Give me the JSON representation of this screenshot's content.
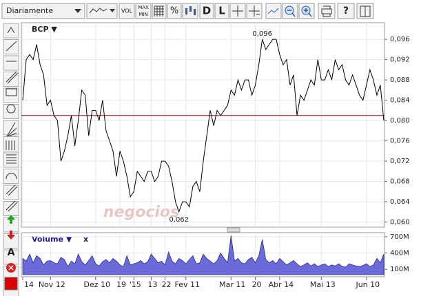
{
  "toolbar": {
    "period": "Diariamente",
    "vol": "VOL",
    "max": "MAX",
    "min": "MIN",
    "percent": "%",
    "d": "D",
    "l": "L",
    "help": "?"
  },
  "side_tool": "A",
  "watermark": "negocios",
  "chart_data": [
    {
      "type": "line",
      "title": "BCP ▼",
      "color": "#000000",
      "values": [
        0.084,
        0.092,
        0.093,
        0.092,
        0.095,
        0.091,
        0.089,
        0.083,
        0.084,
        0.081,
        0.08,
        0.072,
        0.074,
        0.077,
        0.081,
        0.075,
        0.08,
        0.086,
        0.085,
        0.077,
        0.082,
        0.082,
        0.08,
        0.084,
        0.078,
        0.076,
        0.074,
        0.069,
        0.074,
        0.072,
        0.069,
        0.065,
        0.066,
        0.07,
        0.069,
        0.068,
        0.07,
        0.07,
        0.068,
        0.069,
        0.072,
        0.072,
        0.071,
        0.068,
        0.064,
        0.062,
        0.064,
        0.064,
        0.063,
        0.067,
        0.068,
        0.066,
        0.072,
        0.077,
        0.082,
        0.079,
        0.082,
        0.081,
        0.082,
        0.083,
        0.086,
        0.085,
        0.088,
        0.086,
        0.088,
        0.088,
        0.085,
        0.087,
        0.091,
        0.096,
        0.094,
        0.095,
        0.096,
        0.096,
        0.093,
        0.091,
        0.092,
        0.087,
        0.089,
        0.081,
        0.085,
        0.084,
        0.086,
        0.088,
        0.087,
        0.092,
        0.088,
        0.088,
        0.09,
        0.088,
        0.092,
        0.09,
        0.091,
        0.088,
        0.087,
        0.089,
        0.087,
        0.085,
        0.084,
        0.087,
        0.09,
        0.088,
        0.085,
        0.087,
        0.08
      ],
      "annotations": [
        "0,096",
        "0,062"
      ],
      "reference_line": 0.081,
      "reference_color": "#b00000",
      "ylim": [
        0.059,
        0.099
      ],
      "yticks": [
        {
          "value": 0.06,
          "label": "0,060"
        },
        {
          "value": 0.064,
          "label": "0,064"
        },
        {
          "value": 0.068,
          "label": "0,068"
        },
        {
          "value": 0.072,
          "label": "0,072"
        },
        {
          "value": 0.076,
          "label": "0,076"
        },
        {
          "value": 0.08,
          "label": "0,080"
        },
        {
          "value": 0.084,
          "label": "0,084"
        },
        {
          "value": 0.088,
          "label": "0,088"
        },
        {
          "value": 0.092,
          "label": "0,092"
        },
        {
          "value": 0.096,
          "label": "0,096"
        }
      ],
      "grid": true
    },
    {
      "type": "area",
      "title": "Volume ▼",
      "close_label": "x",
      "color": "#6a6ad8",
      "categories": [
        "14",
        null,
        null,
        null,
        null,
        null,
        null,
        null,
        "Nov 12",
        null,
        null,
        null,
        null,
        null,
        null,
        null,
        null,
        null,
        null,
        null,
        null,
        "Dez 10",
        null,
        null,
        null,
        null,
        null,
        null,
        "19",
        null,
        null,
        null,
        "'15",
        null,
        null,
        null,
        null,
        "13",
        null,
        null,
        null,
        "22",
        null,
        null,
        null,
        null,
        null,
        "Fev 11",
        null,
        null,
        null,
        null,
        null,
        null,
        null,
        null,
        null,
        null,
        null,
        null,
        "Mar 11",
        null,
        null,
        null,
        null,
        null,
        null,
        "20",
        null,
        null,
        null,
        null,
        null,
        null,
        "Abr 14",
        null,
        null,
        null,
        null,
        null,
        null,
        null,
        null,
        null,
        null,
        null,
        "Mai 13",
        null,
        null,
        null,
        null,
        null,
        null,
        null,
        null,
        null,
        null,
        null,
        null,
        "Jun 10",
        null,
        null,
        null,
        null,
        null
      ],
      "values": [
        300,
        250,
        380,
        220,
        350,
        300,
        180,
        250,
        260,
        220,
        200,
        320,
        280,
        150,
        250,
        200,
        380,
        240,
        180,
        260,
        350,
        200,
        160,
        240,
        280,
        220,
        300,
        250,
        180,
        150,
        350,
        180,
        200,
        220,
        260,
        200,
        240,
        380,
        300,
        220,
        250,
        180,
        420,
        250,
        200,
        300,
        260,
        200,
        280,
        350,
        200,
        220,
        380,
        300,
        250,
        200,
        260,
        400,
        300,
        220,
        720,
        250,
        300,
        220,
        200,
        280,
        320,
        220,
        350,
        650,
        280,
        220,
        260,
        200,
        300,
        240,
        180,
        220,
        260,
        200,
        150,
        180,
        220,
        160,
        200,
        150,
        180,
        200,
        150,
        180,
        160,
        200,
        150,
        140,
        200,
        180,
        160,
        150,
        170,
        200,
        150,
        180,
        300,
        220,
        380
      ],
      "ylim": [
        0,
        750
      ],
      "yticks": [
        {
          "value": 100,
          "label": "100M"
        },
        {
          "value": 400,
          "label": "400M"
        },
        {
          "value": 700,
          "label": "700M"
        }
      ],
      "grid": true
    }
  ]
}
